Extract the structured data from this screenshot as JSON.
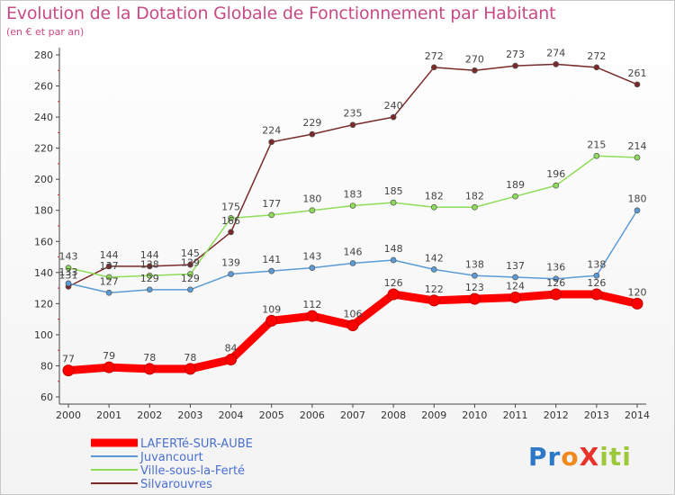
{
  "title": "Evolution de la Dotation Globale de Fonctionnement par Habitant",
  "subtitle": "(en € et par an)",
  "logo": {
    "text": "ProXiti",
    "letters": [
      "P",
      "r",
      "o",
      "X",
      "i",
      "t",
      "i"
    ],
    "colors": [
      "#2e78c8",
      "#2e78c8",
      "#f08a1c",
      "#e8322a",
      "#9cc93a",
      "#9cc93a",
      "#9cc93a"
    ]
  },
  "chart_data": {
    "type": "line",
    "title": "Evolution de la Dotation Globale de Fonctionnement par Habitant",
    "subtitle": "(en € et par an)",
    "xlabel": "",
    "ylabel": "",
    "ylim": [
      60,
      280
    ],
    "y_ticks": [
      60,
      80,
      100,
      120,
      140,
      160,
      180,
      200,
      220,
      240,
      260,
      280
    ],
    "x": [
      2000,
      2001,
      2002,
      2003,
      2004,
      2005,
      2006,
      2007,
      2008,
      2009,
      2010,
      2011,
      2012,
      2013,
      2014
    ],
    "x_tick_labels": [
      "2000",
      "2001",
      "2002",
      "2003",
      "2004",
      "2005",
      "2006",
      "2007",
      "2008",
      "2009",
      "2010",
      "2011",
      "2012",
      "2013",
      "2014"
    ],
    "grid": false,
    "legend_position": "bottom-left",
    "series": [
      {
        "name": "LAFERTé-SUR-AUBE",
        "color": "#ff0000",
        "bold": true,
        "values": [
          77,
          79,
          78,
          78,
          84,
          109,
          112,
          106,
          126,
          122,
          123,
          124,
          126,
          126,
          120
        ]
      },
      {
        "name": "Juvancourt",
        "color": "#5b9bd5",
        "bold": false,
        "values": [
          133,
          127,
          129,
          129,
          139,
          141,
          143,
          146,
          148,
          142,
          138,
          137,
          136,
          138,
          180
        ]
      },
      {
        "name": "Ville-sous-la-Ferté",
        "color": "#8fdc5a",
        "bold": false,
        "values": [
          143,
          137,
          138,
          139,
          175,
          177,
          180,
          183,
          185,
          182,
          182,
          189,
          196,
          215,
          214
        ]
      },
      {
        "name": "Silvarouvres",
        "color": "#7a2a2a",
        "bold": false,
        "values": [
          131,
          144,
          144,
          145,
          166,
          224,
          229,
          235,
          240,
          272,
          270,
          273,
          274,
          272,
          261
        ]
      }
    ]
  }
}
